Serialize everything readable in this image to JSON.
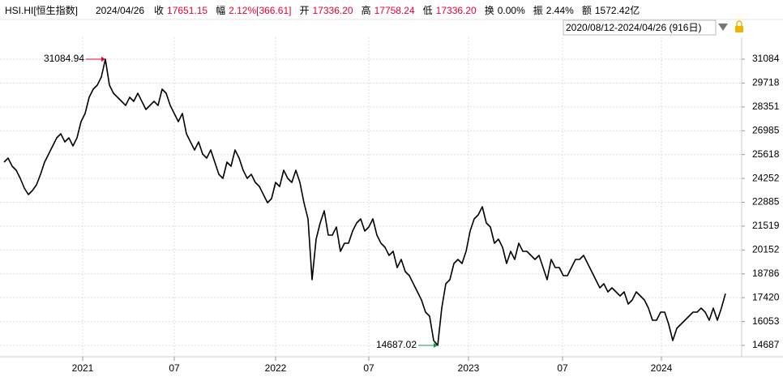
{
  "header": {
    "symbol": "HSI.HI[恒生指数]",
    "date": "2024/04/26",
    "items": [
      {
        "label": "收",
        "value": "17651.15",
        "color": "#e8002d"
      },
      {
        "label": "幅",
        "value": "2.12%[366.61]",
        "color": "#e8002d"
      },
      {
        "label": "开",
        "value": "17336.20",
        "color": "#e8002d"
      },
      {
        "label": "高",
        "value": "17758.24",
        "color": "#e8002d"
      },
      {
        "label": "低",
        "value": "17336.20",
        "color": "#e8002d"
      },
      {
        "label": "换",
        "value": "0.00%",
        "color": "#000000"
      },
      {
        "label": "振",
        "value": "2.44%",
        "color": "#000000"
      },
      {
        "label": "额",
        "value": "1572.42亿",
        "color": "#000000"
      }
    ],
    "range": "2020/08/12-2024/04/26 (916日)"
  },
  "chart_data": {
    "type": "line",
    "series": [
      {
        "name": "HSI.HI",
        "color": "#000000",
        "values": [
          25186,
          25418,
          24953,
          24721,
          24257,
          23699,
          23328,
          23560,
          23885,
          24489,
          25186,
          25650,
          26115,
          26579,
          26812,
          26347,
          26579,
          26115,
          26579,
          27508,
          27973,
          28902,
          29366,
          29599,
          30063,
          31084.94,
          29599,
          29134,
          28902,
          28670,
          28437,
          28902,
          28670,
          29134,
          28670,
          28205,
          28437,
          28670,
          28437,
          29366,
          29134,
          28437,
          27973,
          27508,
          27973,
          26812,
          26347,
          25883,
          26347,
          25650,
          25418,
          25883,
          25186,
          24489,
          24257,
          25186,
          24953,
          25883,
          25418,
          24721,
          24257,
          24489,
          24024,
          23792,
          23328,
          22863,
          23095,
          24024,
          23792,
          24721,
          24257,
          24024,
          24721,
          24024,
          22863,
          21934,
          18450,
          20773,
          21702,
          22399,
          21005,
          21005,
          21470,
          20076,
          20541,
          20541,
          21237,
          21702,
          21934,
          21237,
          21470,
          21934,
          21005,
          20541,
          20308,
          19844,
          20076,
          19147,
          19612,
          18915,
          18683,
          18218,
          17754,
          17289,
          16592,
          16360,
          14967,
          14687.02,
          16825,
          18218,
          18450,
          19379,
          19612,
          19379,
          20076,
          21237,
          21934,
          22166,
          22631,
          21702,
          21470,
          20541,
          20773,
          20308,
          19379,
          20076,
          19612,
          20541,
          20076,
          20076,
          19844,
          19612,
          19844,
          19147,
          18450,
          19612,
          19147,
          19147,
          18683,
          18683,
          19147,
          19612,
          19612,
          19844,
          19379,
          18915,
          18450,
          17986,
          18218,
          17754,
          17986,
          17754,
          17521,
          17754,
          17057,
          17289,
          17754,
          17521,
          17289,
          16825,
          16128,
          16128,
          16592,
          16592,
          15896,
          14967,
          15663,
          15896,
          16128,
          16360,
          16592,
          16592,
          16825,
          16592,
          16128,
          16825,
          16128,
          16825,
          17651.15
        ]
      }
    ],
    "annotations": [
      {
        "index": 25,
        "color": "#e8002d"
      },
      {
        "index": 107,
        "color": "#1a9a50"
      }
    ],
    "ylim": [
      13990,
      31782
    ],
    "yticks": [
      31084,
      29718,
      28351,
      26985,
      25618,
      24252,
      22885,
      21519,
      20152,
      18786,
      17420,
      16053,
      14687
    ],
    "xlim": [
      -1,
      182
    ],
    "xticks": [
      {
        "value": 19.4,
        "label": "2021"
      },
      {
        "value": 42,
        "label": "07"
      },
      {
        "value": 67,
        "label": "2022"
      },
      {
        "value": 90,
        "label": "07"
      },
      {
        "value": 114.6,
        "label": "2023"
      },
      {
        "value": 137.8,
        "label": "07"
      },
      {
        "value": 162.2,
        "label": "2024"
      }
    ],
    "xtick_label_colors": [
      "#e89a1e",
      "#333333",
      "#e89a1e",
      "#333333",
      "#e89a1e",
      "#333333",
      "#e89a1e"
    ],
    "grid": true
  }
}
